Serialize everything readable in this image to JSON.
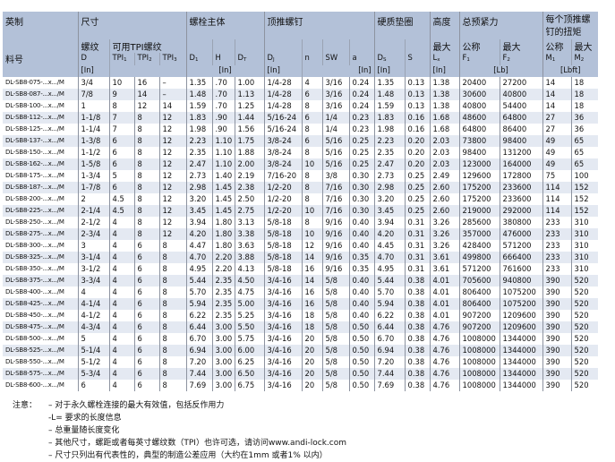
{
  "header": {
    "groups": [
      "英制",
      "尺寸",
      "螺栓主体",
      "顶推螺钉",
      "硬质垫圈",
      "高度",
      "总预紧力",
      "每个顶推螺钉的扭矩"
    ],
    "part_label": "料号",
    "thread_label": "螺纹",
    "tpi_label": "可用TPI螺纹",
    "max": "最大",
    "nominal": "公称",
    "symbols": [
      [
        "D",
        ""
      ],
      [
        "TPI",
        "1"
      ],
      [
        "TPI",
        "2"
      ],
      [
        "TPI",
        "3"
      ],
      [
        "D",
        "1"
      ],
      [
        "H",
        ""
      ],
      [
        "D",
        "T"
      ],
      [
        "D",
        "J"
      ],
      [
        "n",
        ""
      ],
      [
        "SW",
        ""
      ],
      [
        "a",
        ""
      ],
      [
        "D",
        "S"
      ],
      [
        "S",
        ""
      ],
      [
        "L",
        "x"
      ],
      [
        "F",
        "1"
      ],
      [
        "F",
        "2"
      ],
      [
        "M",
        "1"
      ],
      [
        "M",
        "2"
      ]
    ],
    "unit_in": "[In]",
    "unit_lb": "[Lb]",
    "unit_lbft": "[Lbft]"
  },
  "rows": [
    [
      "DL-SB8-075-...x.../M",
      "3/4",
      "10",
      "16",
      "–",
      "1.35",
      ".70",
      "1.00",
      "1/4-28",
      "4",
      "3/16",
      "0.24",
      "1.35",
      "0.13",
      "1.38",
      "20400",
      "27200",
      "14",
      "18"
    ],
    [
      "DL-SB8-087-...x.../M",
      "7/8",
      "9",
      "14",
      "–",
      "1.48",
      ".70",
      "1.13",
      "1/4-28",
      "6",
      "3/16",
      "0.24",
      "1.48",
      "0.13",
      "1.38",
      "30600",
      "40800",
      "14",
      "18"
    ],
    [
      "DL-SB8-100-...x.../M",
      "1",
      "8",
      "12",
      "14",
      "1.59",
      ".70",
      "1.25",
      "1/4-28",
      "8",
      "3/16",
      "0.24",
      "1.59",
      "0.13",
      "1.38",
      "40800",
      "54400",
      "14",
      "18"
    ],
    [
      "DL-SB8-112-...x.../M",
      "1-1/8",
      "7",
      "8",
      "12",
      "1.83",
      ".90",
      "1.44",
      "5/16-24",
      "6",
      "1/4",
      "0.23",
      "1.83",
      "0.16",
      "1.68",
      "48600",
      "64800",
      "27",
      "36"
    ],
    [
      "DL-SB8-125-...x.../M",
      "1-1/4",
      "7",
      "8",
      "12",
      "1.98",
      ".90",
      "1.56",
      "5/16-24",
      "8",
      "1/4",
      "0.23",
      "1.98",
      "0.16",
      "1.68",
      "64800",
      "86400",
      "27",
      "36"
    ],
    [
      "DL-SB8-137-...x.../M",
      "1-3/8",
      "6",
      "8",
      "12",
      "2.23",
      "1.10",
      "1.75",
      "3/8-24",
      "6",
      "5/16",
      "0.25",
      "2.23",
      "0.20",
      "2.03",
      "73800",
      "98400",
      "49",
      "65"
    ],
    [
      "DL-SB8-150-...x.../M",
      "1-1/2",
      "6",
      "8",
      "12",
      "2.35",
      "1.10",
      "1.88",
      "3/8-24",
      "8",
      "5/16",
      "0.25",
      "2.35",
      "0.20",
      "2.03",
      "98400",
      "131200",
      "49",
      "65"
    ],
    [
      "DL-SB8-162-...x.../M",
      "1-5/8",
      "6",
      "8",
      "12",
      "2.47",
      "1.10",
      "2.00",
      "3/8-24",
      "10",
      "5/16",
      "0.25",
      "2.47",
      "0.20",
      "2.03",
      "123000",
      "164000",
      "49",
      "65"
    ],
    [
      "DL-SB8-175-...x.../M",
      "1-3/4",
      "5",
      "8",
      "12",
      "2.73",
      "1.40",
      "2.19",
      "7/16-20",
      "8",
      "3/8",
      "0.30",
      "2.73",
      "0.25",
      "2.49",
      "129600",
      "172800",
      "75",
      "100"
    ],
    [
      "DL-SB8-187-...x.../M",
      "1-7/8",
      "6",
      "8",
      "12",
      "2.98",
      "1.45",
      "2.38",
      "1/2-20",
      "8",
      "7/16",
      "0.30",
      "2.98",
      "0.25",
      "2.60",
      "175200",
      "233600",
      "114",
      "152"
    ],
    [
      "DL-SB8-200-...x.../M",
      "2",
      "4.5",
      "8",
      "12",
      "3.20",
      "1.45",
      "2.50",
      "1/2-20",
      "8",
      "7/16",
      "0.30",
      "3.20",
      "0.25",
      "2.60",
      "175200",
      "233600",
      "114",
      "152"
    ],
    [
      "DL-SB8-225-...x.../M",
      "2-1/4",
      "4.5",
      "8",
      "12",
      "3.45",
      "1.45",
      "2.75",
      "1/2-20",
      "10",
      "7/16",
      "0.30",
      "3.45",
      "0.25",
      "2.60",
      "219000",
      "292000",
      "114",
      "152"
    ],
    [
      "DL-SB8-250-...x.../M",
      "2-1/2",
      "4",
      "8",
      "12",
      "3.94",
      "1.80",
      "3.13",
      "5/8-18",
      "8",
      "9/16",
      "0.40",
      "3.94",
      "0.31",
      "3.26",
      "285600",
      "380800",
      "233",
      "310"
    ],
    [
      "DL-SB8-275-...x.../M",
      "2-3/4",
      "4",
      "8",
      "12",
      "4.20",
      "1.80",
      "3.38",
      "5/8-18",
      "10",
      "9/16",
      "0.40",
      "4.20",
      "0.31",
      "3.26",
      "357000",
      "476000",
      "233",
      "310"
    ],
    [
      "DL-SB8-300-...x.../M",
      "3",
      "4",
      "6",
      "8",
      "4.47",
      "1.80",
      "3.63",
      "5/8-18",
      "12",
      "9/16",
      "0.40",
      "4.45",
      "0.31",
      "3.26",
      "428400",
      "571200",
      "233",
      "310"
    ],
    [
      "DL-SB8-325-...x.../M",
      "3-1/4",
      "4",
      "6",
      "8",
      "4.70",
      "2.20",
      "3.88",
      "5/8-18",
      "14",
      "9/16",
      "0.35",
      "4.70",
      "0.31",
      "3.61",
      "499800",
      "666400",
      "233",
      "310"
    ],
    [
      "DL-SB8-350-...x.../M",
      "3-1/2",
      "4",
      "6",
      "8",
      "4.95",
      "2.20",
      "4.13",
      "5/8-18",
      "16",
      "9/16",
      "0.35",
      "4.95",
      "0.31",
      "3.61",
      "571200",
      "761600",
      "233",
      "310"
    ],
    [
      "DL-SB8-375-...x.../M",
      "3-3/4",
      "4",
      "6",
      "8",
      "5.44",
      "2.35",
      "4.50",
      "3/4-16",
      "14",
      "5/8",
      "0.40",
      "5.44",
      "0.38",
      "4.01",
      "705600",
      "940800",
      "390",
      "520"
    ],
    [
      "DL-SB8-400-...x.../M",
      "4",
      "4",
      "6",
      "8",
      "5.70",
      "2.35",
      "4.75",
      "3/4-16",
      "16",
      "5/8",
      "0.40",
      "5.70",
      "0.38",
      "4.01",
      "806400",
      "1075200",
      "390",
      "520"
    ],
    [
      "DL-SB8-425-...x.../M",
      "4-1/4",
      "4",
      "6",
      "8",
      "5.94",
      "2.35",
      "5.00",
      "3/4-16",
      "16",
      "5/8",
      "0.40",
      "5.94",
      "0.38",
      "4.01",
      "806400",
      "1075200",
      "390",
      "520"
    ],
    [
      "DL-SB8-450-...x.../M",
      "4-1/2",
      "4",
      "6",
      "8",
      "6.22",
      "2.35",
      "5.25",
      "3/4-16",
      "18",
      "5/8",
      "0.40",
      "6.22",
      "0.38",
      "4.01",
      "907200",
      "1209600",
      "390",
      "520"
    ],
    [
      "DL-SB8-475-...x.../M",
      "4-3/4",
      "4",
      "6",
      "8",
      "6.44",
      "3.00",
      "5.50",
      "3/4-16",
      "18",
      "5/8",
      "0.50",
      "6.44",
      "0.38",
      "4.76",
      "907200",
      "1209600",
      "390",
      "520"
    ],
    [
      "DL-SB8-500-...x.../M",
      "5",
      "4",
      "6",
      "8",
      "6.70",
      "3.00",
      "5.75",
      "3/4-16",
      "20",
      "5/8",
      "0.50",
      "6.70",
      "0.38",
      "4.76",
      "1008000",
      "1344000",
      "390",
      "520"
    ],
    [
      "DL-SB8-525-...x.../M",
      "5-1/4",
      "4",
      "6",
      "8",
      "6.94",
      "3.00",
      "6.00",
      "3/4-16",
      "20",
      "5/8",
      "0.50",
      "6.94",
      "0.38",
      "4.76",
      "1008000",
      "1344000",
      "390",
      "520"
    ],
    [
      "DL-SB8-550-...x.../M",
      "5-1/2",
      "4",
      "6",
      "8",
      "7.20",
      "3.00",
      "6.25",
      "3/4-16",
      "20",
      "5/8",
      "0.50",
      "7.20",
      "0.38",
      "4.76",
      "1008000",
      "1344000",
      "390",
      "520"
    ],
    [
      "DL-SB8-575-...x.../M",
      "5-3/4",
      "4",
      "6",
      "8",
      "7.44",
      "3.00",
      "6.50",
      "3/4-16",
      "20",
      "5/8",
      "0.50",
      "7.44",
      "0.38",
      "4.76",
      "1008000",
      "1344000",
      "390",
      "520"
    ],
    [
      "DL-SB8-600-...x.../M",
      "6",
      "4",
      "6",
      "8",
      "7.69",
      "3.00",
      "6.75",
      "3/4-16",
      "20",
      "5/8",
      "0.50",
      "7.69",
      "0.38",
      "4.76",
      "1008000",
      "1344000",
      "390",
      "520"
    ]
  ],
  "notes": {
    "label": "注意：",
    "items": [
      "– 对于永久螺栓连接的最大有效值，包括反作用力",
      "-L= 要求的长度信息",
      "– 总重量随长度变化",
      "– 其他尺寸，螺距或者每英寸螺纹数（TPI）也许可选，请访问www.andi-lock.com",
      "– 尺寸只列出有代表性的，典型的制造公差应用（大约在1mm  或者1% 以内）"
    ]
  },
  "colors": {
    "header_bg": "#b3c1d8",
    "row_alt": "#e4e9f2"
  }
}
